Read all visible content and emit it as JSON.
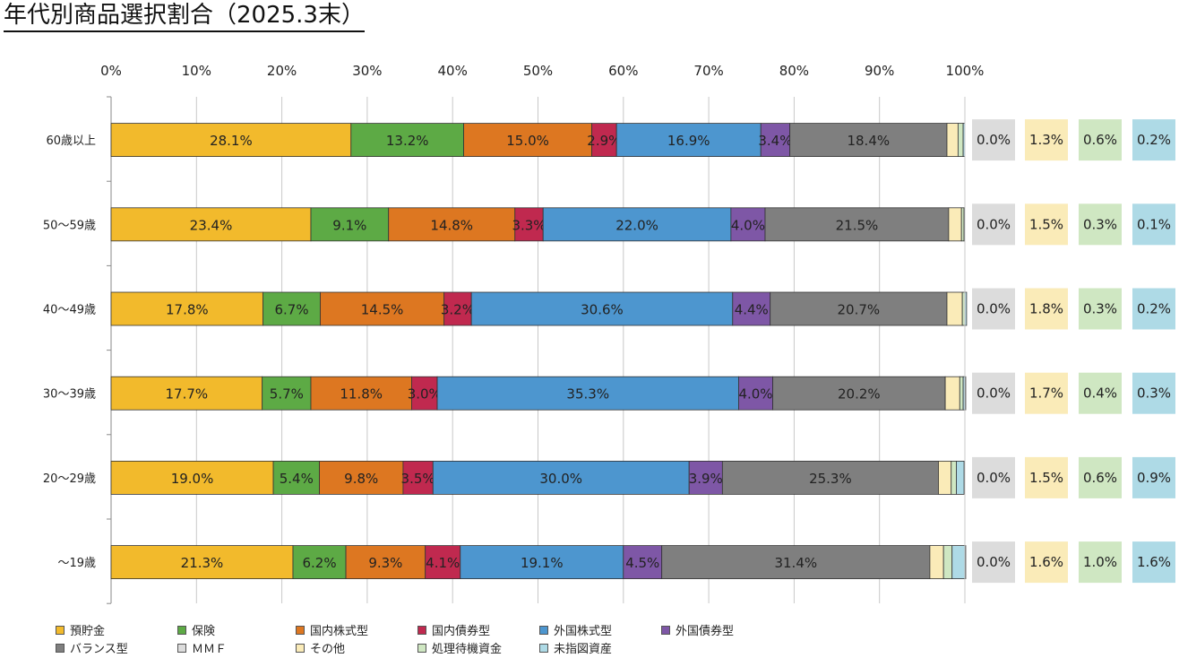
{
  "title": "年代別商品選択割合（2025.3末）",
  "chart_data": {
    "type": "stacked-bar-horizontal",
    "title": "年代別商品選択割合（2025.3末）",
    "x_ticks": [
      "0%",
      "10%",
      "20%",
      "30%",
      "40%",
      "50%",
      "60%",
      "70%",
      "80%",
      "90%",
      "100%"
    ],
    "xlim": [
      0,
      100
    ],
    "legend_position": "bottom",
    "categories": [
      "60歳以上",
      "50～59歳",
      "40～49歳",
      "30～39歳",
      "20～29歳",
      "～19歳"
    ],
    "series": [
      {
        "name": "預貯金",
        "color": "#F2BA2C",
        "values": [
          28.1,
          23.4,
          17.8,
          17.7,
          19.0,
          21.3
        ],
        "labels": [
          "28.1%",
          "23.4%",
          "17.8%",
          "17.7%",
          "19.0%",
          "21.3%"
        ]
      },
      {
        "name": "保険",
        "color": "#5DAA45",
        "values": [
          13.2,
          9.1,
          6.7,
          5.7,
          5.4,
          6.2
        ],
        "labels": [
          "13.2%",
          "9.1%",
          "6.7%",
          "5.7%",
          "5.4%",
          "6.2%"
        ]
      },
      {
        "name": "国内株式型",
        "color": "#DD7721",
        "values": [
          15.0,
          14.8,
          14.5,
          11.8,
          9.8,
          9.3
        ],
        "labels": [
          "15.0%",
          "14.8%",
          "14.5%",
          "11.8%",
          "9.8%",
          "9.3%"
        ]
      },
      {
        "name": "国内債券型",
        "color": "#C0294F",
        "values": [
          2.9,
          3.3,
          3.2,
          3.0,
          3.5,
          4.1
        ],
        "labels": [
          "2.9%",
          "3.3%",
          "3.2%",
          "3.0%",
          "3.5%",
          "4.1%"
        ]
      },
      {
        "name": "外国株式型",
        "color": "#4D96CF",
        "values": [
          16.9,
          22.0,
          30.6,
          35.3,
          30.0,
          19.1
        ],
        "labels": [
          "16.9%",
          "22.0%",
          "30.6%",
          "35.3%",
          "30.0%",
          "19.1%"
        ]
      },
      {
        "name": "外国債券型",
        "color": "#7E57A6",
        "values": [
          3.4,
          4.0,
          4.4,
          4.0,
          3.9,
          4.5
        ],
        "labels": [
          "3.4%",
          "4.0%",
          "4.4%",
          "4.0%",
          "3.9%",
          "4.5%"
        ]
      },
      {
        "name": "バランス型",
        "color": "#7F7F7F",
        "values": [
          18.4,
          21.5,
          20.7,
          20.2,
          25.3,
          31.4
        ],
        "labels": [
          "18.4%",
          "21.5%",
          "20.7%",
          "20.2%",
          "25.3%",
          "31.4%"
        ]
      },
      {
        "name": "ＭＭＦ",
        "color": "#DCDCDC",
        "values": [
          0.0,
          0.0,
          0.0,
          0.0,
          0.0,
          0.0
        ],
        "labels": [
          "0.0%",
          "0.0%",
          "0.0%",
          "0.0%",
          "0.0%",
          "0.0%"
        ]
      },
      {
        "name": "その他",
        "color": "#FAEBB8",
        "values": [
          1.3,
          1.5,
          1.8,
          1.7,
          1.5,
          1.6
        ],
        "labels": [
          "1.3%",
          "1.5%",
          "1.8%",
          "1.7%",
          "1.5%",
          "1.6%"
        ]
      },
      {
        "name": "処理待機資金",
        "color": "#CFE7C2",
        "values": [
          0.6,
          0.3,
          0.3,
          0.4,
          0.6,
          1.0
        ],
        "labels": [
          "0.6%",
          "0.3%",
          "0.3%",
          "0.4%",
          "0.6%",
          "1.0%"
        ]
      },
      {
        "name": "未指図資産",
        "color": "#AEDAE6",
        "values": [
          0.2,
          0.1,
          0.2,
          0.3,
          0.9,
          1.6
        ],
        "labels": [
          "0.2%",
          "0.1%",
          "0.2%",
          "0.3%",
          "0.9%",
          "1.6%"
        ]
      }
    ],
    "side_label_series": [
      "ＭＭＦ",
      "その他",
      "処理待機資金",
      "未指図資産"
    ]
  }
}
